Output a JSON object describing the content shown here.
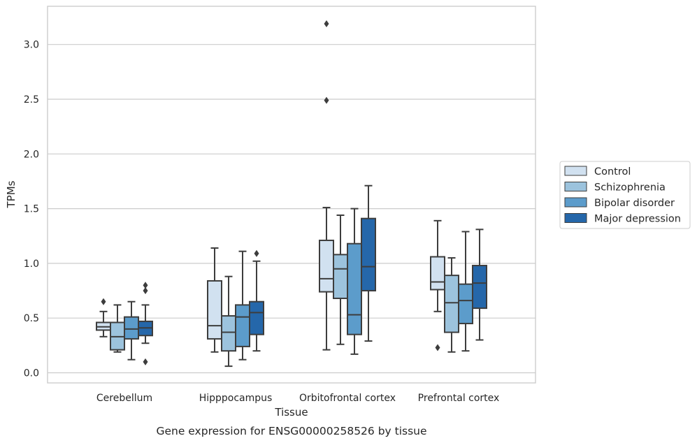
{
  "chart_data": {
    "type": "box",
    "title": "",
    "xlabel": "Tissue",
    "ylabel": "TPMs",
    "caption": "Gene expression for ENSG00000258526 by tissue",
    "ylim": [
      -0.09,
      3.37
    ],
    "yticks": [
      0.0,
      0.5,
      1.0,
      1.5,
      2.0,
      2.5,
      3.0
    ],
    "ytick_labels": [
      "0.0",
      "0.5",
      "1.0",
      "1.5",
      "2.0",
      "2.5",
      "3.0"
    ],
    "grid": "horizontal",
    "legend_position": "right",
    "categories": [
      "Cerebellum",
      "Hipppocampus",
      "Orbitofrontal cortex",
      "Prefrontal cortex"
    ],
    "series": [
      {
        "name": "Control",
        "color": "#d1e1f0",
        "boxes": [
          {
            "whislo": 0.33,
            "q1": 0.39,
            "med": 0.42,
            "q3": 0.46,
            "whishi": 0.56,
            "fliers": [
              0.65
            ]
          },
          {
            "whislo": 0.19,
            "q1": 0.31,
            "med": 0.43,
            "q3": 0.84,
            "whishi": 1.14,
            "fliers": []
          },
          {
            "whislo": 0.21,
            "q1": 0.74,
            "med": 0.86,
            "q3": 1.21,
            "whishi": 1.51,
            "fliers": [
              2.49,
              3.19
            ]
          },
          {
            "whislo": 0.56,
            "q1": 0.76,
            "med": 0.83,
            "q3": 1.06,
            "whishi": 1.39,
            "fliers": [
              0.23
            ]
          }
        ]
      },
      {
        "name": "Schizophrenia",
        "color": "#9cc3dd",
        "boxes": [
          {
            "whislo": 0.19,
            "q1": 0.21,
            "med": 0.33,
            "q3": 0.46,
            "whishi": 0.62,
            "fliers": []
          },
          {
            "whislo": 0.06,
            "q1": 0.2,
            "med": 0.37,
            "q3": 0.52,
            "whishi": 0.88,
            "fliers": []
          },
          {
            "whislo": 0.26,
            "q1": 0.68,
            "med": 0.95,
            "q3": 1.08,
            "whishi": 1.44,
            "fliers": []
          },
          {
            "whislo": 0.19,
            "q1": 0.37,
            "med": 0.64,
            "q3": 0.89,
            "whishi": 1.05,
            "fliers": []
          }
        ]
      },
      {
        "name": "Bipolar disorder",
        "color": "#5c9ccb",
        "boxes": [
          {
            "whislo": 0.12,
            "q1": 0.31,
            "med": 0.4,
            "q3": 0.51,
            "whishi": 0.65,
            "fliers": []
          },
          {
            "whislo": 0.12,
            "q1": 0.24,
            "med": 0.51,
            "q3": 0.62,
            "whishi": 1.11,
            "fliers": []
          },
          {
            "whislo": 0.17,
            "q1": 0.35,
            "med": 0.53,
            "q3": 1.18,
            "whishi": 1.5,
            "fliers": []
          },
          {
            "whislo": 0.2,
            "q1": 0.45,
            "med": 0.66,
            "q3": 0.81,
            "whishi": 1.29,
            "fliers": []
          }
        ]
      },
      {
        "name": "Major depression",
        "color": "#2567aa",
        "boxes": [
          {
            "whislo": 0.27,
            "q1": 0.34,
            "med": 0.41,
            "q3": 0.47,
            "whishi": 0.62,
            "fliers": [
              0.1,
              0.75,
              0.8
            ]
          },
          {
            "whislo": 0.2,
            "q1": 0.35,
            "med": 0.55,
            "q3": 0.65,
            "whishi": 1.02,
            "fliers": [
              1.09
            ]
          },
          {
            "whislo": 0.29,
            "q1": 0.75,
            "med": 0.97,
            "q3": 1.41,
            "whishi": 1.71,
            "fliers": []
          },
          {
            "whislo": 0.3,
            "q1": 0.59,
            "med": 0.82,
            "q3": 0.98,
            "whishi": 1.31,
            "fliers": []
          }
        ]
      }
    ]
  }
}
